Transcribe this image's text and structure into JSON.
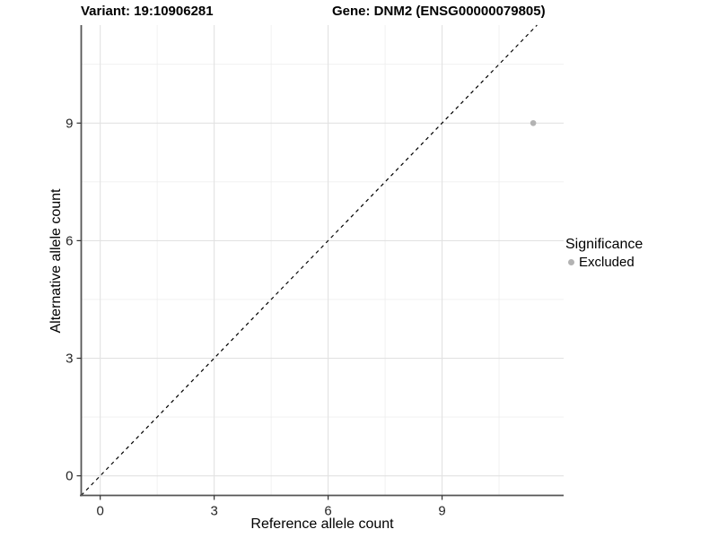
{
  "titles": {
    "variant": "Variant: 19:10906281",
    "gene": "Gene: DNM2 (ENSG00000079805)"
  },
  "chart_data": {
    "type": "scatter",
    "title": "Variant: 19:10906281   Gene: DNM2 (ENSG00000079805)",
    "xlabel": "Reference allele count",
    "ylabel": "Alternative allele count",
    "x_ticks": [
      0,
      3,
      6,
      9
    ],
    "y_ticks": [
      0,
      3,
      6,
      9
    ],
    "xlim": [
      -0.5,
      12.2
    ],
    "ylim": [
      -0.5,
      11.5
    ],
    "grid": {
      "major_color": "#e2e2e2",
      "minor_color": "#efefef",
      "minor_between_majors": true
    },
    "reference_line": {
      "type": "identity",
      "slope": 1,
      "intercept": 0,
      "style": "dashed",
      "color": "#000000"
    },
    "series": [
      {
        "name": "Excluded",
        "color": "#b3b3b3",
        "points": [
          {
            "x": 11.4,
            "y": 9
          }
        ]
      }
    ],
    "legend": {
      "position": "right",
      "title": "Significance",
      "entries": [
        {
          "label": "Excluded",
          "color": "#b3b3b3"
        }
      ]
    },
    "axis_color": "#555555",
    "tick_text_color": "#262626"
  }
}
